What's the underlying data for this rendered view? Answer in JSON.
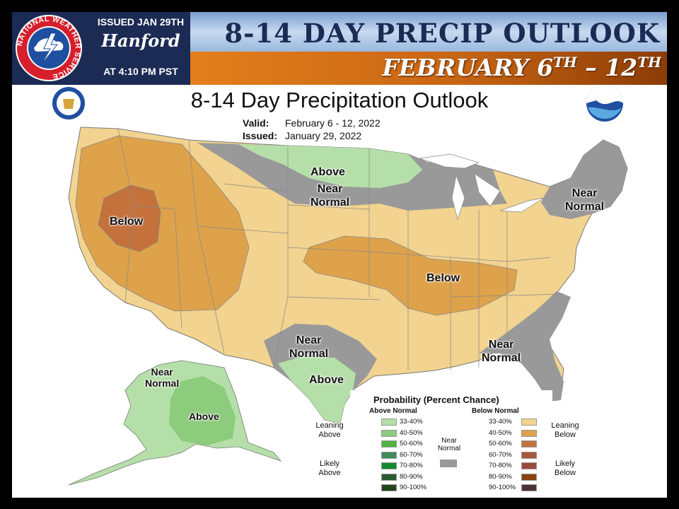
{
  "header": {
    "issued": "ISSUED JAN 29TH",
    "office": "Hanford",
    "time": "AT 4:10 PM PST",
    "nws_logo_text": "NATIONAL WEATHER SERVICE",
    "title": "8-14 DAY PRECIP OUTLOOK",
    "date_main": "FEBRUARY 6",
    "date_sup1": "TH",
    "date_dash": " – 12",
    "date_sup2": "TH"
  },
  "map": {
    "title": "8-14 Day Precipitation Outlook",
    "valid_label": "Valid:",
    "valid_value": "February 6 - 12, 2022",
    "issued_label": "Issued:",
    "issued_value": "January 29, 2022",
    "labels": {
      "above_north": "Above",
      "near_normal_north_1": "Near",
      "near_normal_north_2": "Normal",
      "near_normal_ne_1": "Near",
      "near_normal_ne_2": "Normal",
      "below_west": "Below",
      "below_central": "Below",
      "near_normal_tx_1": "Near",
      "near_normal_tx_2": "Normal",
      "above_tx": "Above",
      "near_normal_se_1": "Near",
      "near_normal_se_2": "Normal",
      "near_normal_ak_1": "Near",
      "near_normal_ak_2": "Normal",
      "above_ak": "Above"
    },
    "colors": {
      "leaning_below": "#f2d38f",
      "below_40_50": "#dea24b",
      "below_50_60": "#c4713c",
      "near_normal": "#999999",
      "leaning_above": "#b5dfa8",
      "above_40_50": "#8ccc7c"
    }
  },
  "legend": {
    "title": "Probability (Percent Chance)",
    "above_header": "Above Normal",
    "below_header": "Below Normal",
    "leaning_above_1": "Leaning",
    "leaning_above_2": "Above",
    "likely_above_1": "Likely",
    "likely_above_2": "Above",
    "leaning_below_1": "Leaning",
    "leaning_below_2": "Below",
    "likely_below_1": "Likely",
    "likely_below_2": "Below",
    "near_normal_1": "Near",
    "near_normal_2": "Normal",
    "above_ranges": [
      "33-40%",
      "40-50%",
      "50-60%",
      "60-70%",
      "70-80%",
      "80-90%",
      "90-100%"
    ],
    "below_ranges": [
      "33-40%",
      "40-50%",
      "50-60%",
      "60-70%",
      "70-80%",
      "80-90%",
      "90-100%"
    ],
    "above_colors": [
      "#b5dfa8",
      "#8ccc7c",
      "#4fb342",
      "#3d8c5a",
      "#138a2e",
      "#295b33",
      "#23461a"
    ],
    "below_colors": [
      "#f2d38f",
      "#dea24b",
      "#c4713c",
      "#a95a3b",
      "#9b4a3d",
      "#8a4310",
      "#4e3232"
    ],
    "near_color": "#999999"
  }
}
